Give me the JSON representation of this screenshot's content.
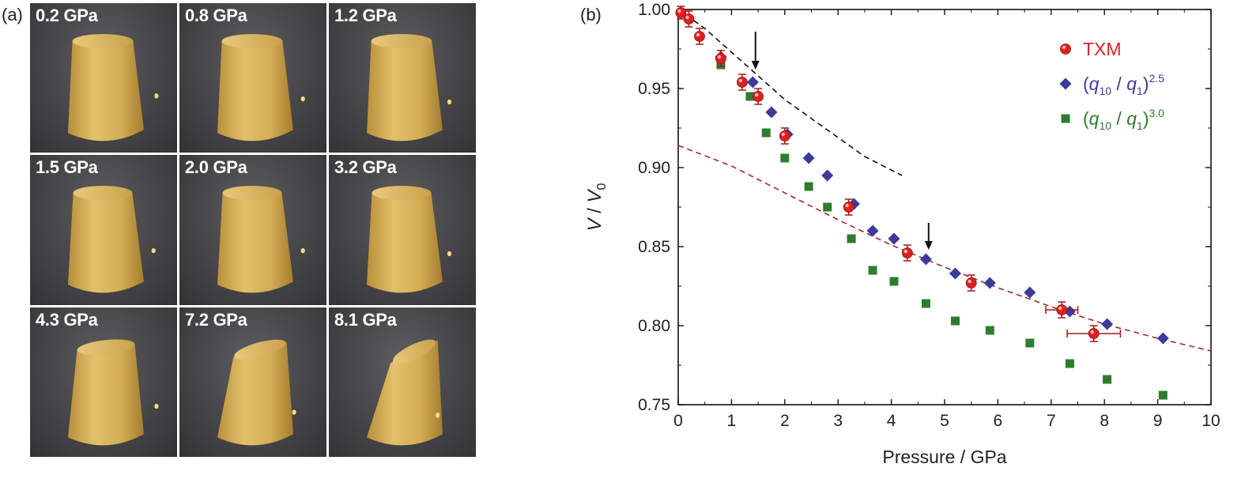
{
  "panel_a": {
    "letter": "(a)",
    "tiles": [
      {
        "label": "0.2 GPa"
      },
      {
        "label": "0.8 GPa"
      },
      {
        "label": "1.2 GPa"
      },
      {
        "label": "1.5 GPa"
      },
      {
        "label": "2.0 GPa"
      },
      {
        "label": "3.2 GPa"
      },
      {
        "label": "4.3 GPa"
      },
      {
        "label": "7.2 GPa"
      },
      {
        "label": "8.1 GPa"
      }
    ],
    "colors": {
      "sample": "#d8b35a",
      "background": "#4a494b",
      "label": "#ffffff"
    }
  },
  "panel_b": {
    "letter": "(b)",
    "chart_data": {
      "type": "scatter",
      "xlabel": "Pressure / GPa",
      "ylabel": "V / V0",
      "ylabel_main": "V",
      "ylabel_sep": " / ",
      "ylabel_denom": "V",
      "ylabel_sub": "0",
      "xlim": [
        0,
        10
      ],
      "ylim": [
        0.75,
        1.0
      ],
      "x_ticks": [
        0,
        1,
        2,
        3,
        4,
        5,
        6,
        7,
        8,
        9,
        10
      ],
      "x_tick_labels": [
        "0",
        "1",
        "2",
        "3",
        "4",
        "5",
        "6",
        "7",
        "8",
        "9",
        "10"
      ],
      "y_ticks": [
        0.75,
        0.8,
        0.85,
        0.9,
        0.95,
        1.0
      ],
      "y_tick_labels": [
        "0.75",
        "0.80",
        "0.85",
        "0.90",
        "0.95",
        "1.00"
      ],
      "grid": false,
      "legend_position": "top-right",
      "series": [
        {
          "name": "TXM",
          "marker": "circle",
          "color": "#e02020",
          "points": [
            {
              "x": 0.05,
              "y": 0.998,
              "yerr": 0.004
            },
            {
              "x": 0.2,
              "y": 0.994,
              "yerr": 0.005
            },
            {
              "x": 0.4,
              "y": 0.983,
              "yerr": 0.005
            },
            {
              "x": 0.8,
              "y": 0.969,
              "yerr": 0.005
            },
            {
              "x": 1.2,
              "y": 0.954,
              "yerr": 0.005
            },
            {
              "x": 1.5,
              "y": 0.945,
              "yerr": 0.005
            },
            {
              "x": 2.0,
              "y": 0.92,
              "yerr": 0.005
            },
            {
              "x": 3.2,
              "y": 0.875,
              "yerr": 0.005
            },
            {
              "x": 4.3,
              "y": 0.846,
              "yerr": 0.005
            },
            {
              "x": 5.5,
              "y": 0.827,
              "yerr": 0.005
            },
            {
              "x": 7.2,
              "y": 0.81,
              "yerr": 0.005,
              "xerr": 0.3
            },
            {
              "x": 7.8,
              "y": 0.795,
              "yerr": 0.005,
              "xerr": 0.5
            }
          ]
        },
        {
          "name": "(q10 / q1)^2.5",
          "marker": "diamond",
          "color": "#3b3b9a",
          "points": [
            {
              "x": 0.8,
              "y": 0.97
            },
            {
              "x": 1.4,
              "y": 0.954
            },
            {
              "x": 1.75,
              "y": 0.935
            },
            {
              "x": 2.05,
              "y": 0.921
            },
            {
              "x": 2.45,
              "y": 0.906
            },
            {
              "x": 2.8,
              "y": 0.895
            },
            {
              "x": 3.3,
              "y": 0.877
            },
            {
              "x": 3.65,
              "y": 0.86
            },
            {
              "x": 4.05,
              "y": 0.855
            },
            {
              "x": 4.65,
              "y": 0.842
            },
            {
              "x": 5.2,
              "y": 0.833
            },
            {
              "x": 5.85,
              "y": 0.827
            },
            {
              "x": 6.6,
              "y": 0.821
            },
            {
              "x": 7.35,
              "y": 0.809
            },
            {
              "x": 8.05,
              "y": 0.801
            },
            {
              "x": 9.1,
              "y": 0.792
            }
          ]
        },
        {
          "name": "(q10 / q1)^3.0",
          "marker": "square",
          "color": "#2e7d2e",
          "points": [
            {
              "x": 0.8,
              "y": 0.965
            },
            {
              "x": 1.35,
              "y": 0.945
            },
            {
              "x": 1.65,
              "y": 0.922
            },
            {
              "x": 2.0,
              "y": 0.906
            },
            {
              "x": 2.45,
              "y": 0.888
            },
            {
              "x": 2.8,
              "y": 0.875
            },
            {
              "x": 3.25,
              "y": 0.855
            },
            {
              "x": 3.65,
              "y": 0.835
            },
            {
              "x": 4.05,
              "y": 0.828
            },
            {
              "x": 4.65,
              "y": 0.814
            },
            {
              "x": 5.2,
              "y": 0.803
            },
            {
              "x": 5.85,
              "y": 0.797
            },
            {
              "x": 6.6,
              "y": 0.789
            },
            {
              "x": 7.35,
              "y": 0.776
            },
            {
              "x": 8.05,
              "y": 0.766
            },
            {
              "x": 9.1,
              "y": 0.756
            }
          ]
        }
      ],
      "legend": [
        {
          "label_plain": "TXM",
          "q_label": false,
          "color": "#e02020",
          "marker": "circle"
        },
        {
          "q_label": true,
          "q": "q",
          "sub1": "10",
          "sep": " / ",
          "q2": "q",
          "sub2": "1",
          "exp": "2.5",
          "color": "#3b3b9a",
          "marker": "diamond"
        },
        {
          "q_label": true,
          "q": "q",
          "sub1": "10",
          "sep": " / ",
          "q2": "q",
          "sub2": "1",
          "exp": "3.0",
          "color": "#2e7d2e",
          "marker": "square"
        }
      ],
      "fit_curves": [
        {
          "name": "fit-high",
          "color": "#111111",
          "style": "dashed",
          "points": [
            [
              0.0,
              1.0
            ],
            [
              0.5,
              0.988
            ],
            [
              1.0,
              0.973
            ],
            [
              1.5,
              0.958
            ],
            [
              2.0,
              0.943
            ],
            [
              2.5,
              0.931
            ],
            [
              3.0,
              0.919
            ],
            [
              3.5,
              0.907
            ],
            [
              4.2,
              0.895
            ]
          ]
        },
        {
          "name": "fit-low",
          "color": "#a02a2a",
          "style": "dashed",
          "points": [
            [
              0.0,
              0.914
            ],
            [
              1.0,
              0.901
            ],
            [
              2.0,
              0.884
            ],
            [
              3.0,
              0.867
            ],
            [
              4.0,
              0.851
            ],
            [
              5.0,
              0.837
            ],
            [
              6.0,
              0.824
            ],
            [
              7.0,
              0.812
            ],
            [
              8.0,
              0.801
            ],
            [
              9.0,
              0.792
            ],
            [
              10.0,
              0.784
            ]
          ]
        }
      ],
      "arrows": [
        {
          "x": 1.45,
          "y_top": 0.986,
          "y_bottom": 0.962
        },
        {
          "x": 4.7,
          "y_top": 0.865,
          "y_bottom": 0.848
        }
      ]
    }
  }
}
